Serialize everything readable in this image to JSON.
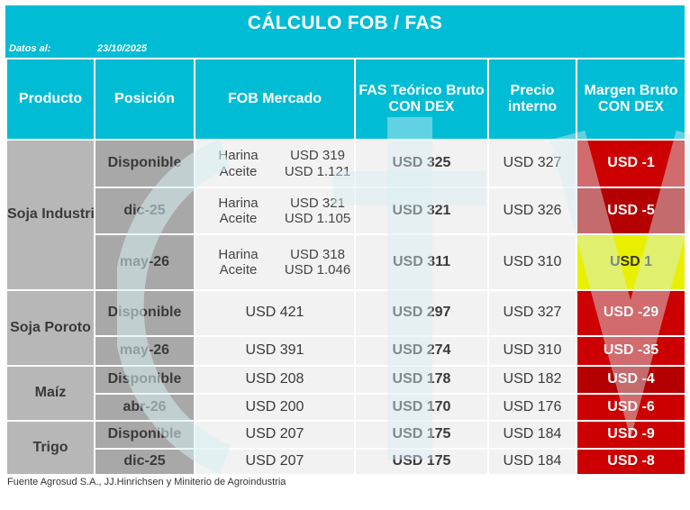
{
  "title": "CÁLCULO FOB / FAS",
  "date_label": "Datos al:",
  "date_value": "23/10/2025",
  "columns": [
    "Producto",
    "Posición",
    "FOB Mercado",
    "FAS Teórico Bruto CON DEX",
    "Precio interno",
    "Margen Bruto CON DEX"
  ],
  "colors": {
    "header_bg": "#00bcd4",
    "margin_red": "#cc0000",
    "margin_darkred": "#b20000",
    "margin_yellow": "#e8f000"
  },
  "groups": [
    {
      "product": "Soja Industria",
      "rows": [
        {
          "position": "Disponible",
          "fob_split": [
            {
              "item": "Harina",
              "value": "USD 319"
            },
            {
              "item": "Aceite",
              "value": "USD 1.121"
            }
          ],
          "fas": "USD 325",
          "precio": "USD 327",
          "margin": "USD -1",
          "margin_color": "#cc0000"
        },
        {
          "position": "dic-25",
          "fob_split": [
            {
              "item": "Harina",
              "value": "USD 321"
            },
            {
              "item": "Aceite",
              "value": "USD 1.105"
            }
          ],
          "fas": "USD 321",
          "precio": "USD 326",
          "margin": "USD -5",
          "margin_color": "#b40000"
        },
        {
          "position": "may-26",
          "fob_split": [
            {
              "item": "Harina",
              "value": "USD 318"
            },
            {
              "item": "Aceite",
              "value": "USD 1.046"
            }
          ],
          "fas": "USD 311",
          "precio": "USD 310",
          "margin": "USD 1",
          "margin_color": "#e8f000"
        }
      ]
    },
    {
      "product": "Soja Poroto",
      "rows": [
        {
          "position": "Disponible",
          "fob": "USD 421",
          "fas": "USD 297",
          "precio": "USD 327",
          "margin": "USD -29",
          "margin_color": "#cc0000"
        },
        {
          "position": "may-26",
          "fob": "USD 391",
          "fas": "USD 274",
          "precio": "USD 310",
          "margin": "USD -35",
          "margin_color": "#cc0000"
        }
      ]
    },
    {
      "product": "Maíz",
      "rows": [
        {
          "position": "Disponible",
          "fob": "USD 208",
          "fas": "USD 178",
          "precio": "USD 182",
          "margin": "USD -4",
          "margin_color": "#b40000"
        },
        {
          "position": "abr-26",
          "fob": "USD 200",
          "fas": "USD 170",
          "precio": "USD 176",
          "margin": "USD -6",
          "margin_color": "#cc0000"
        }
      ]
    },
    {
      "product": "Trigo",
      "rows": [
        {
          "position": "Disponible",
          "fob": "USD 207",
          "fas": "USD 175",
          "precio": "USD 184",
          "margin": "USD -9",
          "margin_color": "#cc0000"
        },
        {
          "position": "dic-25",
          "fob": "USD 207",
          "fas": "USD 175",
          "precio": "USD 184",
          "margin": "USD -8",
          "margin_color": "#cc0000"
        }
      ]
    }
  ],
  "source": "Fuente Agrosud S.A., JJ.Hinrichsen y Miniterio de Agroindustria"
}
